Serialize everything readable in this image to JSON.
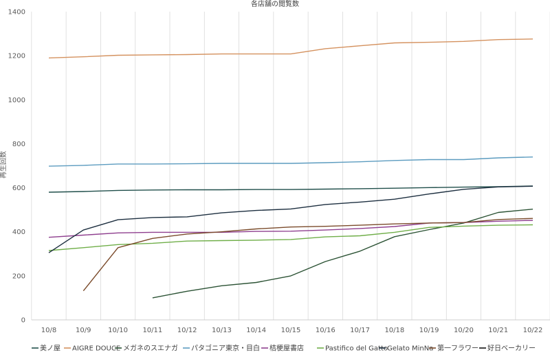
{
  "chart_data": {
    "type": "line",
    "title": "各店舗の閲覧数",
    "xlabel": "",
    "ylabel": "再生回数",
    "categories": [
      "10/8",
      "10/9",
      "10/10",
      "10/11",
      "10/12",
      "10/13",
      "10/14",
      "10/15",
      "10/16",
      "10/17",
      "10/18",
      "10/19",
      "10/20",
      "10/21",
      "10/22"
    ],
    "ylim": [
      0,
      1400
    ],
    "yticks": [
      0,
      200,
      400,
      600,
      800,
      1000,
      1200,
      1400
    ],
    "grid": "vertical",
    "legend_position": "bottom",
    "series": [
      {
        "name": "美ノ屋",
        "color": "#1F4E4A",
        "values": [
          580,
          583,
          588,
          590,
          591,
          591,
          592,
          592,
          594,
          596,
          598,
          601,
          603,
          605,
          608
        ]
      },
      {
        "name": "AIGRE DOUCE",
        "color": "#D4915E",
        "values": [
          1190,
          1195,
          1202,
          1204,
          1205,
          1208,
          1208,
          1208,
          1232,
          1245,
          1258,
          1261,
          1265,
          1273,
          1276
        ]
      },
      {
        "name": "メガネのスエナガ",
        "color": "#2B5234",
        "values": [
          null,
          null,
          null,
          100,
          130,
          155,
          170,
          200,
          265,
          312,
          378,
          410,
          440,
          488,
          503
        ]
      },
      {
        "name": "パタゴニア東京・目白",
        "color": "#5B9BBF",
        "values": [
          698,
          702,
          708,
          708,
          709,
          711,
          711,
          711,
          714,
          718,
          724,
          728,
          728,
          736,
          740
        ]
      },
      {
        "name": "桔梗屋書店",
        "color": "#8E3E8E",
        "values": [
          375,
          385,
          395,
          398,
          398,
          398,
          402,
          403,
          408,
          415,
          424,
          440,
          442,
          448,
          452
        ]
      },
      {
        "name": "Pastifico del Gatto",
        "color": "#6FAE48",
        "values": [
          315,
          328,
          342,
          348,
          358,
          360,
          362,
          365,
          377,
          382,
          398,
          420,
          426,
          430,
          432
        ]
      },
      {
        "name": "Gelato MinNa",
        "color": "#1C2E3F",
        "values": [
          305,
          408,
          455,
          465,
          468,
          486,
          497,
          504,
          524,
          535,
          548,
          572,
          593,
          604,
          607
        ]
      },
      {
        "name": "第一フラワー",
        "color": "#7A4A2A",
        "values": [
          null,
          132,
          328,
          370,
          390,
          400,
          413,
          422,
          425,
          430,
          436,
          440,
          442,
          456,
          461
        ]
      },
      {
        "name": "好日ベーカリー",
        "color": "#111111",
        "values": [
          null,
          null,
          null,
          null,
          null,
          null,
          null,
          null,
          null,
          null,
          null,
          null,
          null,
          null,
          null
        ]
      }
    ]
  }
}
